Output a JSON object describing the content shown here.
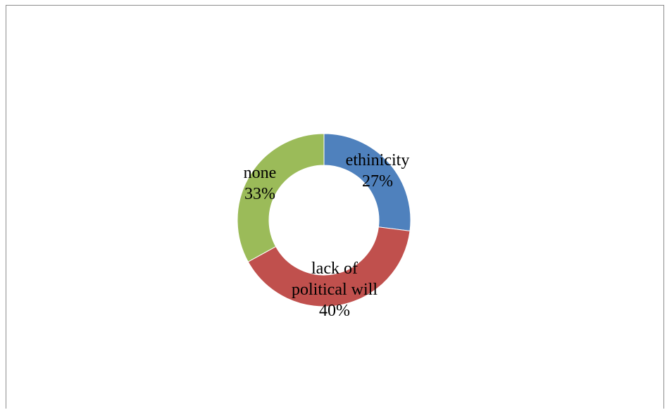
{
  "chart_data": {
    "type": "pie",
    "variant": "donut",
    "title": "",
    "slices": [
      {
        "label": "ethinicity",
        "value": 27,
        "percent_label": "27%",
        "color": "#4F81BD"
      },
      {
        "label": "lack of political will",
        "value": 40,
        "percent_label": "40%",
        "color": "#C0504D"
      },
      {
        "label": "none",
        "value": 33,
        "percent_label": "33%",
        "color": "#9BBB59"
      }
    ],
    "legend": "none",
    "start_angle": "12 o'clock, clockwise"
  }
}
